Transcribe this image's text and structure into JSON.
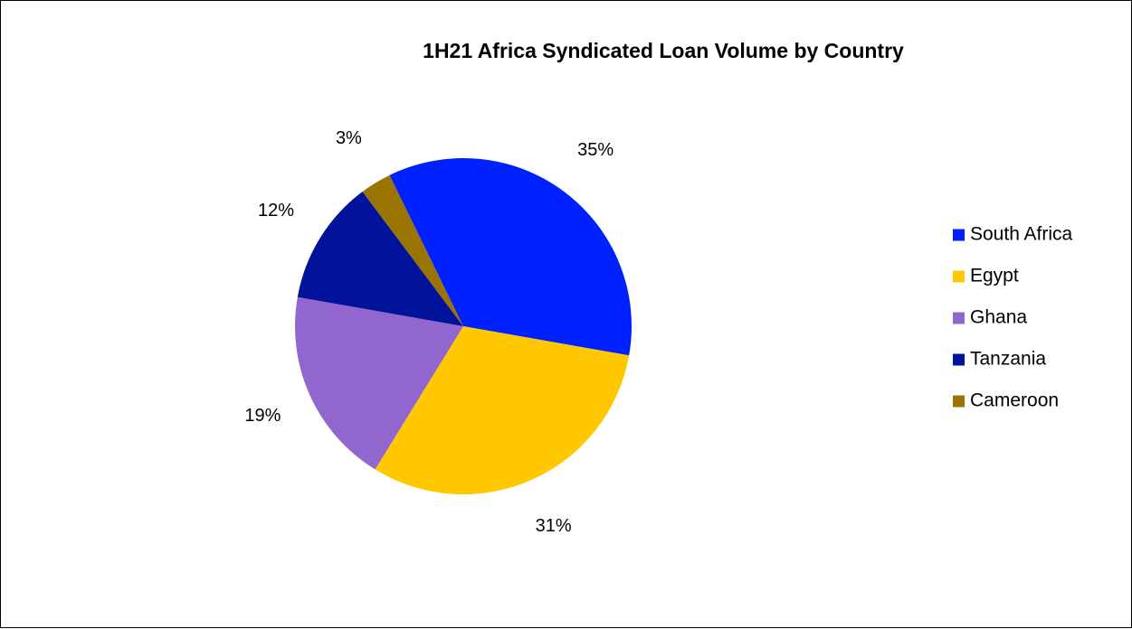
{
  "chart_data": {
    "type": "pie",
    "title": "1H21 Africa Syndicated Loan Volume by Country",
    "legend_position": "right",
    "slices": [
      {
        "name": "South Africa",
        "value": 35,
        "label": "35%",
        "color": "#0021FF"
      },
      {
        "name": "Egypt",
        "value": 31,
        "label": "31%",
        "color": "#FFC800"
      },
      {
        "name": "Ghana",
        "value": 19,
        "label": "19%",
        "color": "#9166CF"
      },
      {
        "name": "Tanzania",
        "value": 12,
        "label": "12%",
        "color": "#00139A"
      },
      {
        "name": "Cameroon",
        "value": 3,
        "label": "3%",
        "color": "#9A7400"
      }
    ]
  }
}
